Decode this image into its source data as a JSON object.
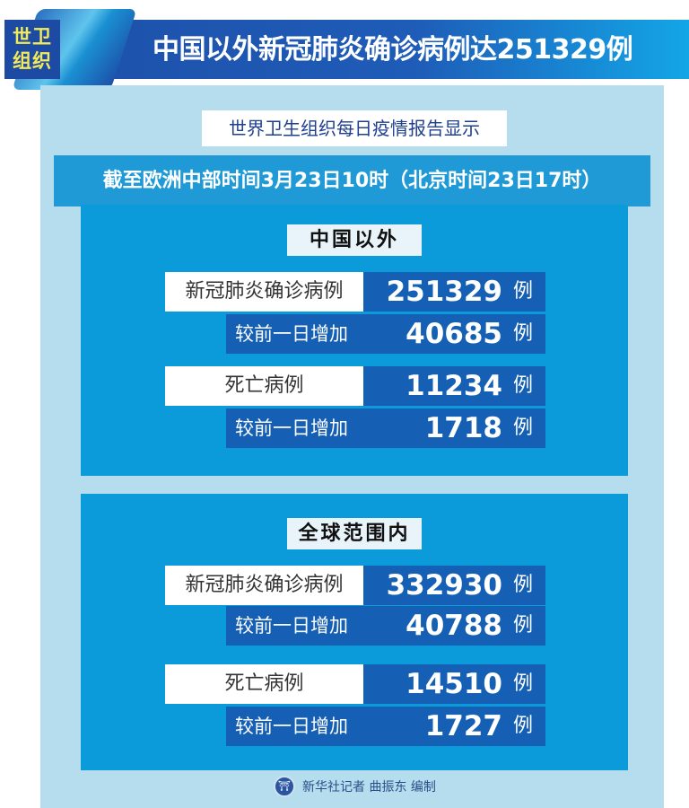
{
  "header": {
    "badge_line1": "世卫",
    "badge_line2": "组织",
    "title": "中国以外新冠肺炎确诊病例达251329例"
  },
  "subtitle": "世界卫生组织每日疫情报告显示",
  "time_note": "截至欧洲中部时间3月23日10时（北京时间23日17时）",
  "sections": [
    {
      "label": "中国以外",
      "confirmed_label": "新冠肺炎确诊病例",
      "confirmed": "251329",
      "confirmed_increase_label": "较前一日增加",
      "confirmed_increase": "40685",
      "deaths_label": "死亡病例",
      "deaths": "11234",
      "deaths_increase_label": "较前一日增加",
      "deaths_increase": "1718",
      "unit": "例"
    },
    {
      "label": "全球范围内",
      "confirmed_label": "新冠肺炎确诊病例",
      "confirmed": "332930",
      "confirmed_increase_label": "较前一日增加",
      "confirmed_increase": "40788",
      "deaths_label": "死亡病例",
      "deaths": "14510",
      "deaths_increase_label": "较前一日增加",
      "deaths_increase": "1727",
      "unit": "例"
    }
  ],
  "footer": {
    "credit": "新华社记者 曲振东 编制"
  },
  "colors": {
    "header": "#1d4fa8",
    "badge_text": "#f3ea5a",
    "panel": "#b5ddee",
    "section": "#0b9bdb",
    "value_box": "#1560b4"
  }
}
